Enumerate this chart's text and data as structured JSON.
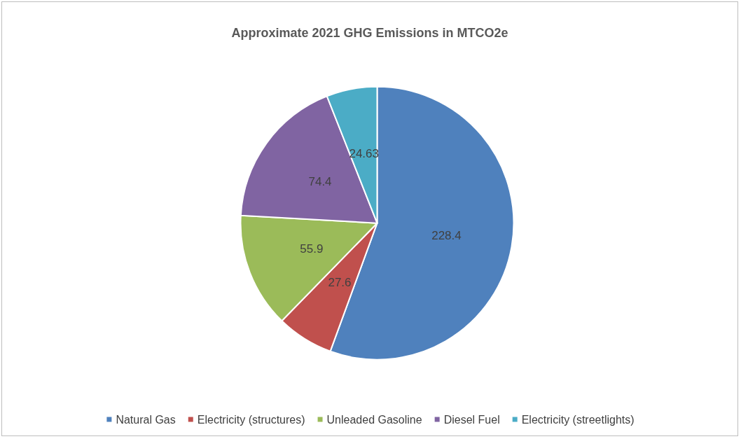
{
  "chart_data": {
    "type": "pie",
    "title": "Approximate 2021 GHG Emissions in MTCO2e",
    "categories": [
      "Natural Gas",
      "Electricity (structures)",
      "Unleaded Gasoline",
      "Diesel Fuel",
      "Electricity (streetlights)"
    ],
    "values": [
      228.4,
      27.6,
      55.9,
      74.4,
      24.63
    ],
    "colors": [
      "#4f81bd",
      "#c0504d",
      "#9bbb59",
      "#8064a2",
      "#4bacc6"
    ],
    "data_labels": true,
    "legend": "bottom"
  }
}
